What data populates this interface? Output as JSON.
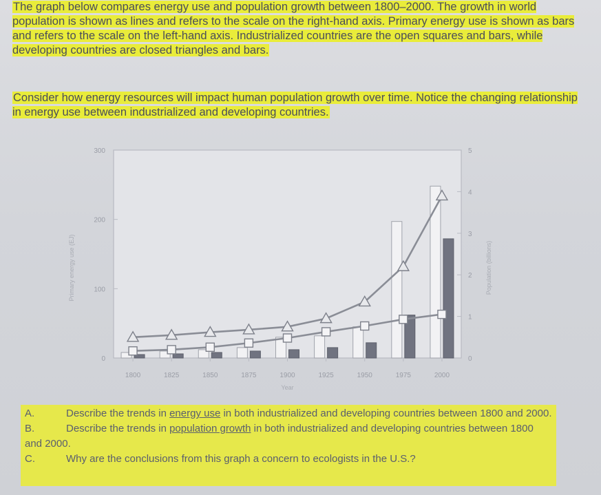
{
  "intro": "The graph below compares energy use and population growth between 1800–2000. The growth in world population is shown as lines and refers to the scale on the right-hand axis. Primary energy use is shown as bars and refers to the scale on the left-hand axis. Industrialized countries are the open squares and bars, while developing countries are closed triangles and bars.",
  "consider": "Consider how energy resources will impact human population growth over time. Notice the changing relationship in energy use between industrialized and developing countries.",
  "questions": {
    "a_letter": "A.",
    "a_pre": "Describe the trends in ",
    "a_ul": "energy use",
    "a_post": " in both industrialized and developing countries between 1800 and 2000.",
    "b_letter": "B.",
    "b_pre": "Describe the trends in ",
    "b_ul": "population growth",
    "b_post": " in both industrialized and developing countries between 1800 and 2000.",
    "c_letter": "C.",
    "c_text": "Why are the conclusions from this graph a concern to ecologists in the U.S.?"
  },
  "colors": {
    "highlight": "#e9ec3a",
    "line": "#8a8d96",
    "closed_bar": "#707380",
    "open_bar": "#f2f2f4"
  },
  "chart_data": {
    "type": "bar",
    "categories": [
      "1800",
      "1825",
      "1850",
      "1875",
      "1900",
      "1925",
      "1950",
      "1975",
      "2000"
    ],
    "xlabel": "Year",
    "ylabel": "Primary energy use (EJ)",
    "y2label": "Population (billions)",
    "ylim": [
      0,
      300
    ],
    "y2lim": [
      0,
      5
    ],
    "yticks": [
      "0",
      "100",
      "200",
      "300"
    ],
    "y2ticks": [
      "0",
      "1",
      "2",
      "3",
      "4",
      "5"
    ],
    "series": [
      {
        "name": "Industrialized countries",
        "kind": "bar-open",
        "axis": "left",
        "values": [
          8,
          10,
          12,
          15,
          30,
          32,
          45,
          197,
          248
        ]
      },
      {
        "name": "Developing countries",
        "kind": "bar-closed",
        "axis": "left",
        "values": [
          5,
          6,
          8,
          10,
          12,
          15,
          22,
          62,
          172
        ]
      },
      {
        "name": "Developing countries",
        "kind": "line-triangle",
        "axis": "right",
        "values": [
          0.5,
          0.55,
          0.62,
          0.68,
          0.75,
          0.95,
          1.35,
          2.2,
          3.9
        ]
      },
      {
        "name": "Industrialized countries",
        "kind": "line-square",
        "axis": "right",
        "values": [
          0.17,
          0.2,
          0.26,
          0.36,
          0.48,
          0.63,
          0.77,
          0.93,
          1.05
        ]
      }
    ],
    "grid": false
  }
}
